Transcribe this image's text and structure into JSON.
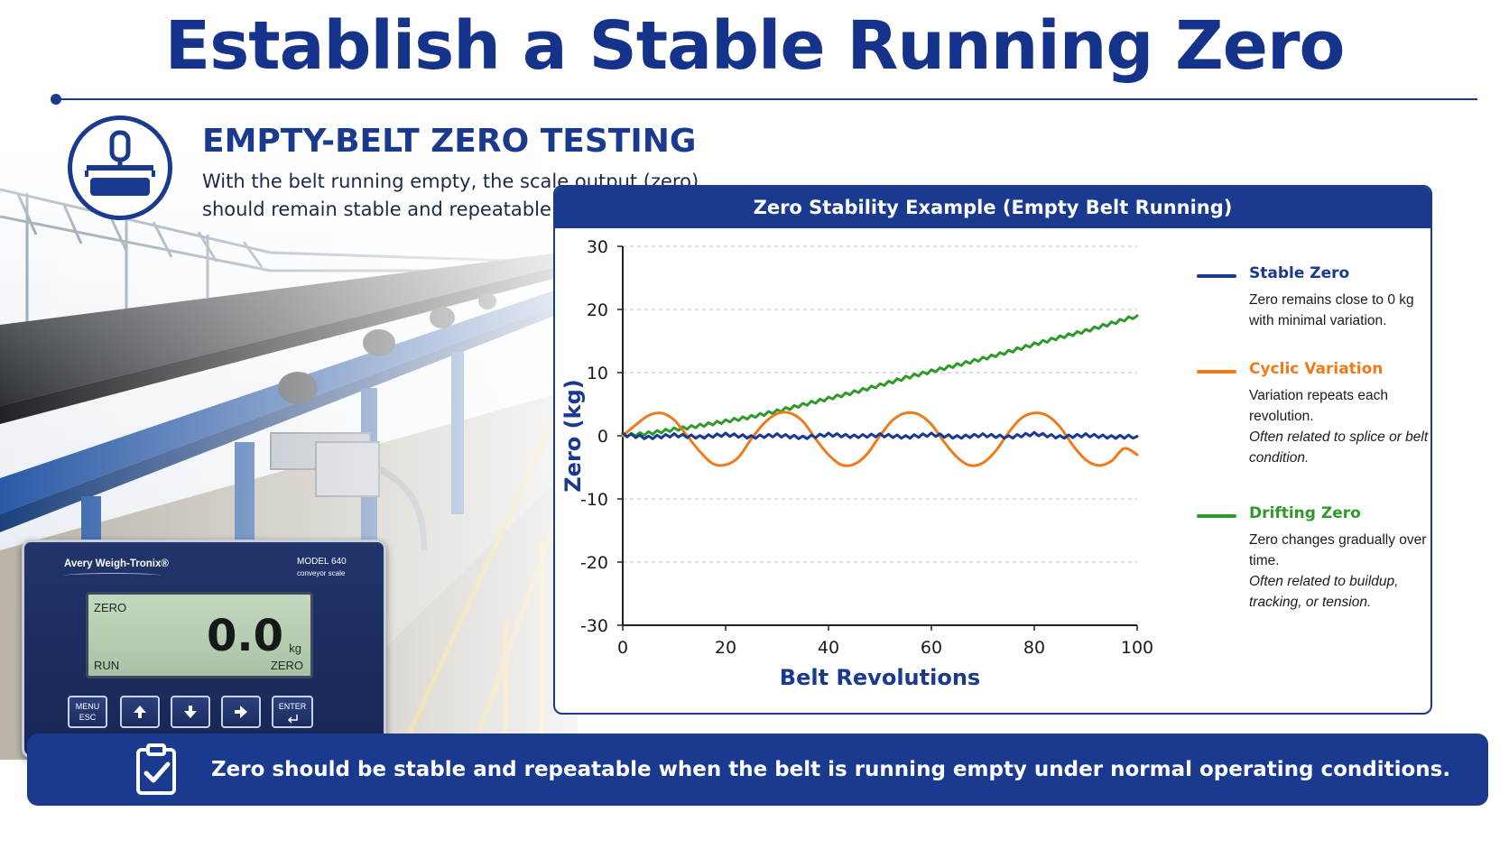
{
  "page": {
    "title": "Establish a Stable Running Zero"
  },
  "section": {
    "icon": "belt-scale-icon",
    "heading": "EMPTY-BELT ZERO TESTING",
    "description": "With the belt running empty, the scale output (zero) should remain stable and repeatable."
  },
  "device": {
    "brand": "Avery Weigh-Tronix®",
    "model": "MODEL 640",
    "model_sub": "conveyor scale",
    "display": {
      "top_left": "ZERO",
      "value": "0.0",
      "unit": "kg",
      "bottom_left": "RUN",
      "bottom_right": "ZERO"
    },
    "keys": [
      {
        "label": "MENU ESC",
        "icon": ""
      },
      {
        "label": "",
        "icon": "arrow-up-icon"
      },
      {
        "label": "",
        "icon": "arrow-down-icon"
      },
      {
        "label": "",
        "icon": "arrow-right-icon"
      },
      {
        "label": "ENTER",
        "icon": "enter-icon"
      }
    ]
  },
  "chart_data": {
    "type": "line",
    "title": "Zero Stability Example (Empty Belt Running)",
    "xlabel": "Belt Revolutions",
    "ylabel": "Zero (kg)",
    "xlim": [
      0,
      100
    ],
    "ylim": [
      -30,
      30
    ],
    "x_ticks": [
      0,
      20,
      40,
      60,
      80,
      100
    ],
    "y_ticks": [
      30,
      20,
      10,
      0,
      -10,
      -20,
      -30
    ],
    "grid": "horizontal-dashed",
    "legend_position": "right",
    "series": [
      {
        "name": "Stable Zero",
        "color": "#1a3a8f",
        "description": "Zero remains close to 0 kg with minimal variation.",
        "x": [
          0,
          5,
          10,
          15,
          20,
          25,
          30,
          35,
          40,
          45,
          50,
          55,
          60,
          65,
          70,
          75,
          80,
          85,
          90,
          95,
          100
        ],
        "y": [
          0.2,
          -0.3,
          0.1,
          -0.2,
          0.2,
          -0.2,
          0.1,
          -0.3,
          0.2,
          -0.1,
          0.1,
          -0.2,
          0.2,
          -0.2,
          0.1,
          -0.2,
          0.3,
          -0.2,
          0.1,
          -0.2,
          -0.1
        ]
      },
      {
        "name": "Cyclic Variation",
        "color": "#f07a1a",
        "description": "Variation repeats each revolution.",
        "note": "Often related to splice or belt condition.",
        "amplitude": 4.5,
        "period": 20,
        "x": [
          0,
          2.5,
          5,
          7.5,
          10,
          12.5,
          15,
          17.5,
          20,
          22.5,
          25,
          27.5,
          30,
          32.5,
          35,
          37.5,
          40,
          42.5,
          45,
          47.5,
          50,
          52.5,
          55,
          57.5,
          60,
          62.5,
          65,
          67.5,
          70,
          72.5,
          75,
          77.5,
          80,
          82.5,
          85,
          87.5,
          90,
          92.5,
          95,
          97.5,
          100
        ],
        "y": [
          0.0,
          1.7,
          3.2,
          3.6,
          2.5,
          0.0,
          -2.5,
          -4.4,
          -4.6,
          -3.4,
          -0.5,
          2.0,
          3.5,
          3.6,
          2.3,
          -0.5,
          -3.0,
          -4.6,
          -4.5,
          -2.9,
          0.0,
          2.5,
          3.6,
          3.4,
          1.8,
          -1.0,
          -3.4,
          -4.7,
          -4.3,
          -2.4,
          0.5,
          2.8,
          3.6,
          3.2,
          1.4,
          -1.5,
          -3.8,
          -4.7,
          -4.0,
          -2.0,
          -3.0
        ]
      },
      {
        "name": "Drifting Zero",
        "color": "#2e9a2a",
        "description": "Zero changes gradually over time.",
        "note": "Often related to buildup, tracking, or tension.",
        "x": [
          0,
          5,
          10,
          15,
          20,
          25,
          30,
          35,
          40,
          45,
          50,
          55,
          60,
          65,
          70,
          75,
          80,
          85,
          90,
          95,
          100
        ],
        "y": [
          0.0,
          0.4,
          1.0,
          1.6,
          2.3,
          3.0,
          3.9,
          4.9,
          5.9,
          6.9,
          8.0,
          9.2,
          10.2,
          11.2,
          12.2,
          13.3,
          14.5,
          15.6,
          16.6,
          17.8,
          19.0
        ]
      }
    ]
  },
  "footer": {
    "icon": "clipboard-check-icon",
    "text": "Zero should be stable and repeatable when the belt is running empty under normal operating conditions."
  },
  "colors": {
    "brand_blue": "#1a3a8f",
    "stable": "#1a3a8f",
    "cyclic": "#f07a1a",
    "drifting": "#2e9a2a"
  }
}
